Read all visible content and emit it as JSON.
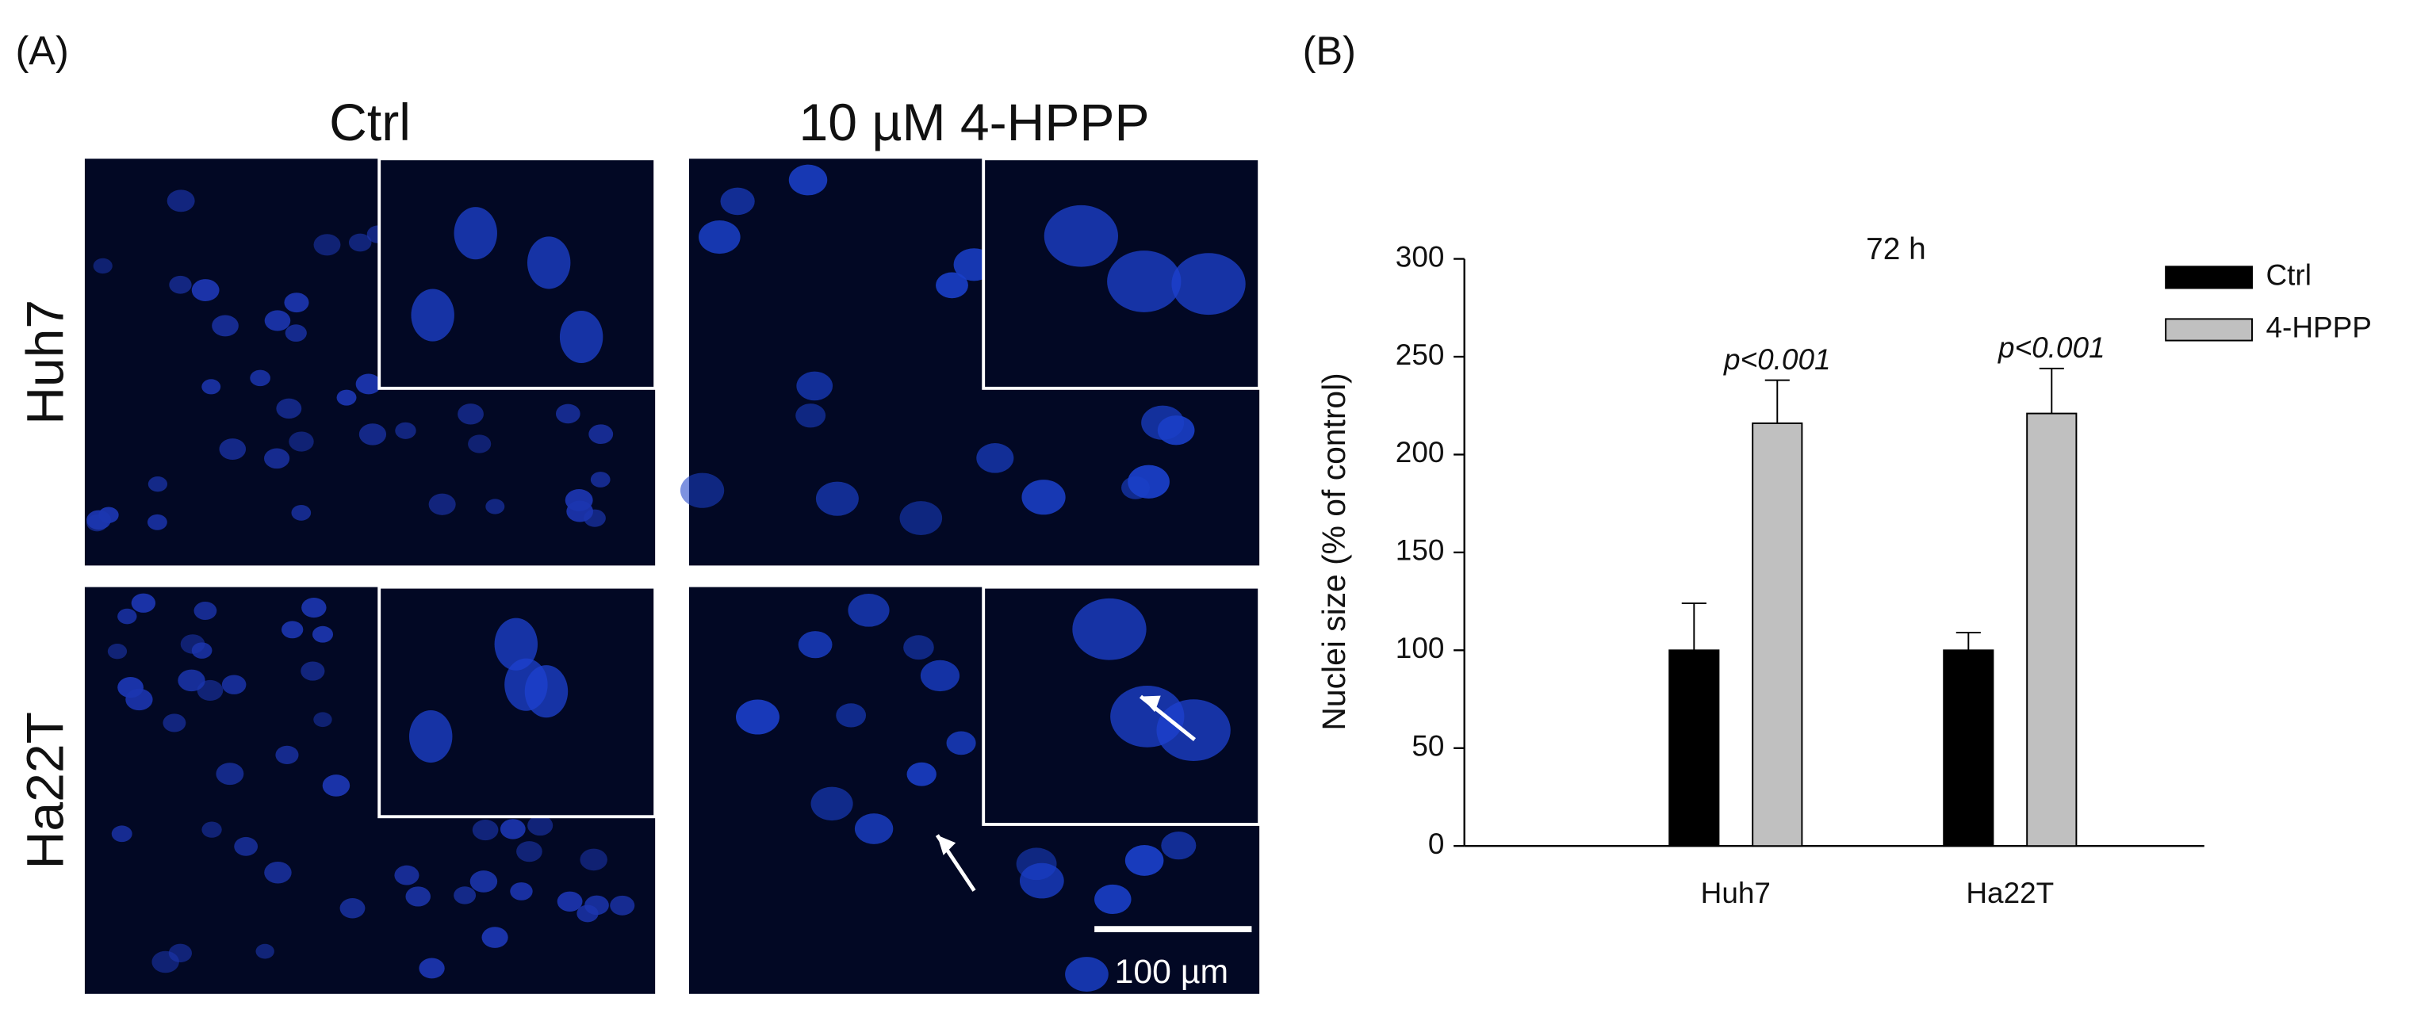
{
  "panel_a": {
    "label": "(A)",
    "columns": [
      "Ctrl",
      "10 µM 4-HPPP"
    ],
    "rows": [
      "Huh7",
      "Ha22T"
    ],
    "scale_bar": "100 µm"
  },
  "chart_data": {
    "type": "bar",
    "label": "(B)",
    "title": "72 h",
    "y_label": "Nuclei size (% of control)",
    "categories": [
      "Huh7",
      "Ha22T"
    ],
    "series": [
      {
        "name": "Ctrl",
        "color": "#000000",
        "values": [
          100,
          100
        ],
        "errors": [
          24,
          9
        ]
      },
      {
        "name": "4-HPPP",
        "color": "#c0c0c0",
        "values": [
          216,
          221
        ],
        "errors": [
          22,
          23
        ]
      }
    ],
    "annotations": [
      "p<0.001",
      "p<0.001"
    ],
    "ylim": [
      0,
      300
    ],
    "yticks": [
      0,
      50,
      100,
      150,
      200,
      250,
      300
    ],
    "legend": "upper right"
  }
}
